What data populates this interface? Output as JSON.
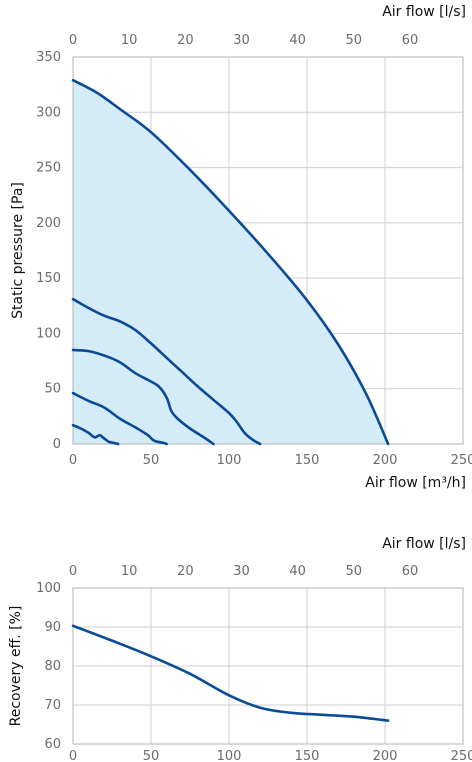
{
  "chart_data": [
    {
      "type": "line",
      "title": "",
      "xlabel": "Air flow [m³/h]",
      "x2label": "Air flow [l/s]",
      "ylabel": "Static pressure [Pa]",
      "xlim": [
        0,
        250
      ],
      "x2lim": [
        0,
        69.44
      ],
      "ylim": [
        0,
        350
      ],
      "xticks": [
        0,
        50,
        100,
        150,
        200,
        250
      ],
      "x2ticks": [
        0,
        10,
        20,
        30,
        40,
        50,
        60
      ],
      "yticks": [
        0,
        50,
        100,
        150,
        200,
        250,
        300,
        350
      ],
      "grid": true,
      "operating_area": true,
      "series": [
        {
          "values": [
            [
              0,
              329
            ],
            [
              15,
              318
            ],
            [
              30,
              303
            ],
            [
              50,
              282
            ],
            [
              75,
              248
            ],
            [
              100,
              211
            ],
            [
              125,
              172
            ],
            [
              150,
              130
            ],
            [
              170,
              90
            ],
            [
              188,
              45
            ],
            [
              202,
              0
            ]
          ]
        },
        {
          "values": [
            [
              0,
              131
            ],
            [
              10,
              123
            ],
            [
              20,
              116
            ],
            [
              30,
              111
            ],
            [
              40,
              103
            ],
            [
              50,
              91
            ],
            [
              60,
              78
            ],
            [
              70,
              65
            ],
            [
              80,
              52
            ],
            [
              90,
              40
            ],
            [
              100,
              28
            ],
            [
              105,
              20
            ],
            [
              110,
              10
            ],
            [
              115,
              4
            ],
            [
              120,
              0
            ]
          ]
        },
        {
          "values": [
            [
              0,
              85
            ],
            [
              10,
              84
            ],
            [
              20,
              80
            ],
            [
              30,
              74
            ],
            [
              40,
              64
            ],
            [
              48,
              58
            ],
            [
              55,
              52
            ],
            [
              60,
              42
            ],
            [
              63,
              30
            ],
            [
              67,
              23
            ],
            [
              75,
              14
            ],
            [
              85,
              5
            ],
            [
              90,
              0
            ]
          ]
        },
        {
          "values": [
            [
              0,
              46
            ],
            [
              10,
              39
            ],
            [
              20,
              33
            ],
            [
              30,
              23
            ],
            [
              40,
              15
            ],
            [
              48,
              8
            ],
            [
              52,
              3
            ],
            [
              58,
              1
            ],
            [
              60,
              0
            ]
          ]
        },
        {
          "values": [
            [
              0,
              17
            ],
            [
              5,
              14
            ],
            [
              10,
              10
            ],
            [
              14,
              6
            ],
            [
              17,
              8
            ],
            [
              20,
              5
            ],
            [
              23,
              2
            ],
            [
              26,
              1
            ],
            [
              29,
              0
            ]
          ]
        }
      ]
    },
    {
      "type": "line",
      "title": "",
      "xlabel": "Air flow [m³/h]",
      "x2label": "Air flow [l/s]",
      "ylabel": "Recovery eff. [%]",
      "xlim": [
        0,
        250
      ],
      "x2lim": [
        0,
        69.44
      ],
      "ylim": [
        60,
        100
      ],
      "xticks": [
        0,
        50,
        100,
        150,
        200,
        250
      ],
      "x2ticks": [
        0,
        10,
        20,
        30,
        40,
        50,
        60
      ],
      "yticks": [
        60,
        70,
        80,
        90,
        100
      ],
      "grid": true,
      "series": [
        {
          "values": [
            [
              0,
              90.3
            ],
            [
              25,
              86.5
            ],
            [
              50,
              82.5
            ],
            [
              75,
              78
            ],
            [
              100,
              72.5
            ],
            [
              120,
              69.3
            ],
            [
              140,
              68
            ],
            [
              160,
              67.5
            ],
            [
              180,
              67
            ],
            [
              202,
              66
            ]
          ]
        }
      ]
    }
  ]
}
